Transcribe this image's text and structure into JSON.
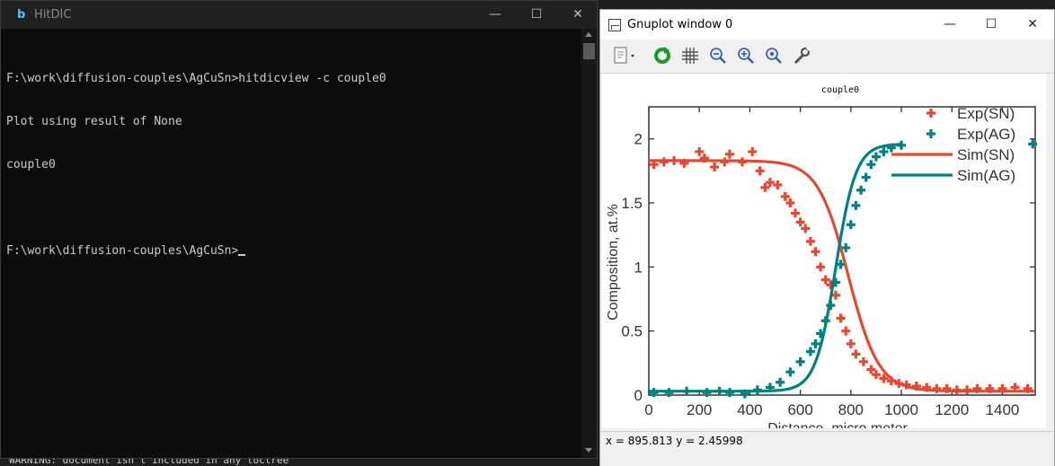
{
  "console": {
    "title": "HitDIC",
    "lines": [
      "F:\\work\\diffusion-couples\\AgCuSn>hitdicview -c couple0",
      "Plot using result of None",
      "couple0",
      "",
      "F:\\work\\diffusion-couples\\AgCuSn>"
    ]
  },
  "background": {
    "bottom_text": "WARNING: document isn't included in any toctree"
  },
  "gnuplot": {
    "title": "Gnuplot window 0",
    "status": "x = 895.813 y = 2.45998",
    "colors": {
      "sn": "#e34a33",
      "ag": "#008080",
      "axis": "#000000"
    }
  },
  "chart_data": {
    "type": "scatter",
    "title": "couple0",
    "xlabel": "Distance, micro meter",
    "ylabel": "Composition, at.%",
    "xlim": [
      0,
      1530
    ],
    "ylim": [
      0,
      2.25
    ],
    "xticks": [
      0,
      200,
      400,
      600,
      800,
      1000,
      1200,
      1400
    ],
    "xtick_labels": [
      "0",
      "200",
      "400",
      "600",
      "800",
      "1000",
      "1200",
      "1400"
    ],
    "yticks": [
      0,
      0.5,
      1,
      1.5,
      2
    ],
    "ytick_labels": [
      "0",
      "0.5",
      "1",
      "1.5",
      "2"
    ],
    "legend_position": "top-right",
    "series": [
      {
        "name": "Exp(SN)",
        "kind": "points",
        "color": "#e34a33",
        "x": [
          20,
          60,
          100,
          140,
          200,
          220,
          260,
          300,
          320,
          370,
          410,
          440,
          460,
          480,
          510,
          540,
          560,
          580,
          600,
          620,
          640,
          660,
          680,
          700,
          720,
          740,
          760,
          780,
          800,
          820,
          850,
          880,
          900,
          930,
          960,
          990,
          1020,
          1060,
          1100,
          1140,
          1180,
          1220,
          1260,
          1300,
          1350,
          1400,
          1450,
          1500
        ],
        "y": [
          1.8,
          1.82,
          1.83,
          1.81,
          1.9,
          1.85,
          1.78,
          1.82,
          1.88,
          1.82,
          1.9,
          1.75,
          1.62,
          1.66,
          1.64,
          1.55,
          1.5,
          1.42,
          1.35,
          1.3,
          1.2,
          1.12,
          1.0,
          0.9,
          0.86,
          0.78,
          0.6,
          0.5,
          0.4,
          0.32,
          0.26,
          0.2,
          0.16,
          0.13,
          0.11,
          0.09,
          0.08,
          0.07,
          0.06,
          0.05,
          0.05,
          0.04,
          0.04,
          0.05,
          0.05,
          0.05,
          0.06,
          0.05
        ]
      },
      {
        "name": "Exp(AG)",
        "kind": "points",
        "color": "#008080",
        "x": [
          20,
          80,
          150,
          230,
          280,
          320,
          380,
          430,
          480,
          520,
          560,
          600,
          640,
          660,
          680,
          700,
          720,
          740,
          760,
          780,
          800,
          820,
          840,
          860,
          880,
          900,
          930,
          960,
          1000,
          1520
        ],
        "y": [
          0.02,
          0.02,
          0.03,
          0.02,
          0.03,
          0.02,
          0.01,
          0.04,
          0.06,
          0.1,
          0.18,
          0.26,
          0.34,
          0.4,
          0.48,
          0.58,
          0.7,
          0.88,
          1.02,
          1.15,
          1.33,
          1.48,
          1.6,
          1.7,
          1.8,
          1.86,
          1.9,
          1.93,
          1.95,
          1.96
        ]
      },
      {
        "name": "Sim(SN)",
        "kind": "line",
        "color": "#e34a33",
        "x0": 790,
        "w": 60,
        "y_high": 1.83,
        "y_low": 0.03
      },
      {
        "name": "Sim(AG)",
        "kind": "line",
        "color": "#008080",
        "x0": 740,
        "w": 40,
        "y_high": 1.96,
        "y_low": 0.03,
        "x_end": 1000
      }
    ]
  }
}
